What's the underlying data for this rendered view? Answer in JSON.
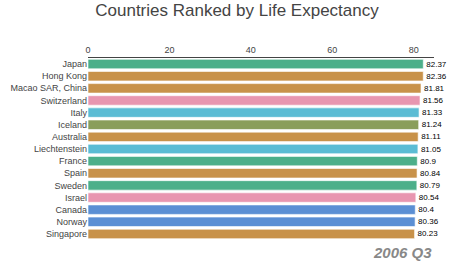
{
  "chart_data": {
    "type": "bar",
    "orientation": "horizontal",
    "title": "Countries Ranked by Life Expectancy",
    "categories": [
      "Japan",
      "Hong Kong",
      "Macao SAR, China",
      "Switzerland",
      "Italy",
      "Iceland",
      "Australia",
      "Liechtenstein",
      "France",
      "Spain",
      "Sweden",
      "Israel",
      "Canada",
      "Norway",
      "Singapore"
    ],
    "values": [
      82.37,
      82.36,
      81.81,
      81.56,
      81.33,
      81.24,
      81.11,
      81.05,
      80.9,
      80.84,
      80.79,
      80.54,
      80.4,
      80.36,
      80.23
    ],
    "colors": [
      "#4caf8a",
      "#c8924a",
      "#c8924a",
      "#e896b0",
      "#5bbcd4",
      "#8a9e5a",
      "#c8924a",
      "#5bbcd4",
      "#4caf8a",
      "#c8924a",
      "#4caf8a",
      "#e896b0",
      "#5b8fd4",
      "#5b8fd4",
      "#c8924a"
    ],
    "xlim": [
      0,
      85
    ],
    "xticks": [
      0,
      20,
      40,
      60,
      80
    ],
    "grid": false,
    "data_labels": true,
    "annotations": [
      {
        "text": "2006 Q3",
        "color": "#888888"
      }
    ]
  }
}
